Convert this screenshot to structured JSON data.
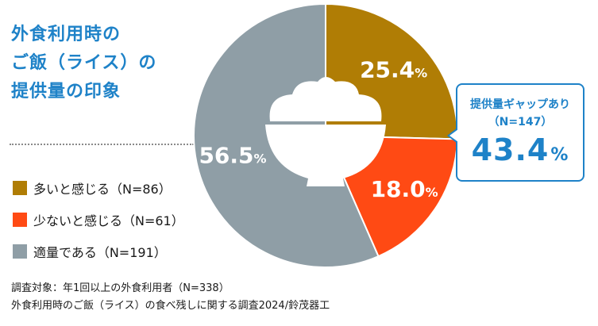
{
  "title_lines": [
    "外食利用時の",
    "ご飯（ライス）の",
    "提供量の印象"
  ],
  "chart_data": {
    "type": "pie",
    "slices": [
      {
        "label": "多いと感じる（N=86）",
        "value": 25.4,
        "value_text": "25.4",
        "color": "#b07d05"
      },
      {
        "label": "少ないと感じる（N=61）",
        "value": 18.0,
        "value_text": "18.0",
        "color": "#ff4a14"
      },
      {
        "label": "適量である（N=191）",
        "value": 56.5,
        "value_text": "56.5",
        "color": "#8f9ea6"
      }
    ],
    "unit": "%",
    "legend_position": "left",
    "center_icon": "rice-bowl-icon",
    "start_angle_deg": 0,
    "direction": "clockwise"
  },
  "callout": {
    "label": "提供量ギャップあり",
    "n": "（N=147）",
    "value": "43.4",
    "unit": "%"
  },
  "footnote": [
    "調査対象：年1回以上の外食利用者（N=338）",
    "外食利用時のご飯（ライス）の食べ残しに関する調査2024/鈴茂器工"
  ],
  "colors": {
    "accent": "#1e82c8",
    "bowl": "#ffffff"
  }
}
